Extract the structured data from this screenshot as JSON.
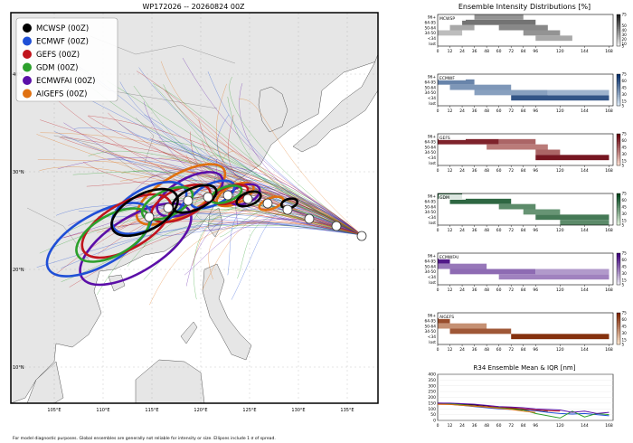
{
  "map": {
    "title": "WP172026 -- 20260824 00Z",
    "lon_ticks": [
      "105°E",
      "110°E",
      "115°E",
      "120°E",
      "125°E",
      "130°E",
      "135°E"
    ],
    "lat_ticks": [
      "40°N",
      "30°N",
      "20°N",
      "10°N"
    ],
    "legend": [
      {
        "name": "MCWSP (00Z)",
        "color": "#000000"
      },
      {
        "name": "ECMWF (00Z)",
        "color": "#1f4fd6"
      },
      {
        "name": "GEFS (00Z)",
        "color": "#c0141c"
      },
      {
        "name": "GDM (00Z)",
        "color": "#2ca02c"
      },
      {
        "name": "ECMWFAI (00Z)",
        "color": "#5b0fa8"
      },
      {
        "name": "AIGEFS (00Z)",
        "color": "#e07010"
      }
    ],
    "footnote": "For model diagnostic purposes. Global ensembles are generally not reliable for intensity or size. Ellipses include 1 σ of spread."
  },
  "right": {
    "title": "Ensemble Intensity Distributions [%]",
    "r34_title": "R34 Ensemble Mean & IQR [nm]"
  },
  "chart_data": [
    {
      "type": "heatmap",
      "title": "Ensemble Intensity Distributions [%]",
      "x": [
        0,
        12,
        24,
        36,
        48,
        60,
        72,
        84,
        96,
        120,
        144,
        168
      ],
      "y_categories": [
        "96+",
        "64-95",
        "50-64",
        "34-50",
        "<34",
        "lost"
      ],
      "panels": [
        {
          "name": "MCWSP",
          "cmap": "gray",
          "cbar_ticks": [
            5,
            10,
            20,
            30,
            40,
            50,
            75
          ],
          "bands": [
            {
              "row": "34-50",
              "from": 0,
              "to": 24,
              "level": 0.25
            },
            {
              "row": "50-64",
              "from": 12,
              "to": 36,
              "level": 0.35
            },
            {
              "row": "64-95",
              "from": 24,
              "to": 96,
              "level": 0.6
            },
            {
              "row": "96+",
              "from": 36,
              "to": 84,
              "level": 0.45
            },
            {
              "row": "50-64",
              "from": 60,
              "to": 108,
              "level": 0.5
            },
            {
              "row": "34-50",
              "from": 84,
              "to": 120,
              "level": 0.45
            },
            {
              "row": "<34",
              "from": 96,
              "to": 132,
              "level": 0.35
            }
          ]
        },
        {
          "name": "ECMWF",
          "cmap": "blue",
          "cbar_ticks": [
            5,
            15,
            30,
            45,
            60,
            75
          ],
          "bands": [
            {
              "row": "64-95",
              "from": 0,
              "to": 36,
              "level": 0.55
            },
            {
              "row": "50-64",
              "from": 12,
              "to": 72,
              "level": 0.45
            },
            {
              "row": "34-50",
              "from": 36,
              "to": 108,
              "level": 0.4
            },
            {
              "row": "<34",
              "from": 72,
              "to": 168,
              "level": 0.8
            },
            {
              "row": "34-50",
              "from": 108,
              "to": 168,
              "level": 0.3
            }
          ]
        },
        {
          "name": "GEFS",
          "cmap": "red",
          "cbar_ticks": [
            5,
            15,
            30,
            45,
            60,
            75
          ],
          "bands": [
            {
              "row": "64-95",
              "from": 0,
              "to": 60,
              "level": 0.85
            },
            {
              "row": "64-95",
              "from": 60,
              "to": 96,
              "level": 0.55
            },
            {
              "row": "50-64",
              "from": 48,
              "to": 108,
              "level": 0.45
            },
            {
              "row": "34-50",
              "from": 96,
              "to": 120,
              "level": 0.55
            },
            {
              "row": "<34",
              "from": 96,
              "to": 168,
              "level": 0.9
            }
          ]
        },
        {
          "name": "GDM",
          "cmap": "green",
          "cbar_ticks": [
            5,
            15,
            30,
            45,
            60,
            75
          ],
          "bands": [
            {
              "row": "96+",
              "from": 0,
              "to": 24,
              "level": 0.9
            },
            {
              "row": "64-95",
              "from": 12,
              "to": 72,
              "level": 0.8
            },
            {
              "row": "50-64",
              "from": 60,
              "to": 96,
              "level": 0.6
            },
            {
              "row": "34-50",
              "from": 84,
              "to": 120,
              "level": 0.55
            },
            {
              "row": "<34",
              "from": 96,
              "to": 168,
              "level": 0.7
            },
            {
              "row": "lost",
              "from": 120,
              "to": 168,
              "level": 0.6
            }
          ]
        },
        {
          "name": "ECMWFAI",
          "cmap": "purple",
          "cbar_ticks": [
            5,
            15,
            30,
            45,
            60,
            75
          ],
          "bands": [
            {
              "row": "64-95",
              "from": 0,
              "to": 12,
              "level": 0.9
            },
            {
              "row": "50-64",
              "from": 0,
              "to": 48,
              "level": 0.5
            },
            {
              "row": "34-50",
              "from": 12,
              "to": 96,
              "level": 0.55
            },
            {
              "row": "<34",
              "from": 60,
              "to": 168,
              "level": 0.45
            },
            {
              "row": "34-50",
              "from": 96,
              "to": 168,
              "level": 0.35
            }
          ]
        },
        {
          "name": "AIGEFS",
          "cmap": "orange",
          "cbar_ticks": [
            5,
            15,
            30,
            45,
            60,
            75
          ],
          "bands": [
            {
              "row": "64-95",
              "from": 0,
              "to": 12,
              "level": 0.8
            },
            {
              "row": "50-64",
              "from": 0,
              "to": 48,
              "level": 0.45
            },
            {
              "row": "34-50",
              "from": 12,
              "to": 72,
              "level": 0.75
            },
            {
              "row": "<34",
              "from": 72,
              "to": 168,
              "level": 0.95
            }
          ]
        }
      ]
    },
    {
      "type": "line",
      "title": "R34 Ensemble Mean & IQR [nm]",
      "x": [
        0,
        12,
        24,
        36,
        48,
        60,
        72,
        84,
        96,
        108,
        120,
        132,
        144,
        156,
        168
      ],
      "yticks": [
        0,
        50,
        100,
        150,
        200,
        250,
        300,
        350,
        400
      ],
      "ylim": [
        0,
        400
      ],
      "series": [
        {
          "name": "MCWSP",
          "color": "#000000",
          "values": [
            150,
            148,
            140,
            135,
            128,
            118,
            105,
            95,
            90,
            80,
            null,
            null,
            null,
            null,
            null
          ]
        },
        {
          "name": "ECMWF",
          "color": "#1f4fd6",
          "values": [
            145,
            140,
            130,
            120,
            110,
            100,
            95,
            90,
            85,
            70,
            60,
            55,
            60,
            50,
            40
          ]
        },
        {
          "name": "GEFS",
          "color": "#c0141c",
          "values": [
            140,
            140,
            135,
            128,
            120,
            115,
            110,
            100,
            90,
            85,
            80,
            null,
            null,
            null,
            null
          ]
        },
        {
          "name": "GDM",
          "color": "#2ca02c",
          "values": [
            150,
            145,
            135,
            125,
            115,
            110,
            100,
            90,
            60,
            40,
            20,
            80,
            30,
            60,
            50
          ]
        },
        {
          "name": "ECMWFAI",
          "color": "#5b0fa8",
          "values": [
            150,
            150,
            145,
            140,
            130,
            120,
            115,
            110,
            100,
            95,
            90,
            70,
            80,
            60,
            70
          ]
        },
        {
          "name": "AIGEFS",
          "color": "#e07010",
          "values": [
            140,
            138,
            130,
            122,
            115,
            105,
            95,
            80,
            70,
            null,
            null,
            null,
            null,
            null,
            null
          ]
        }
      ]
    }
  ]
}
